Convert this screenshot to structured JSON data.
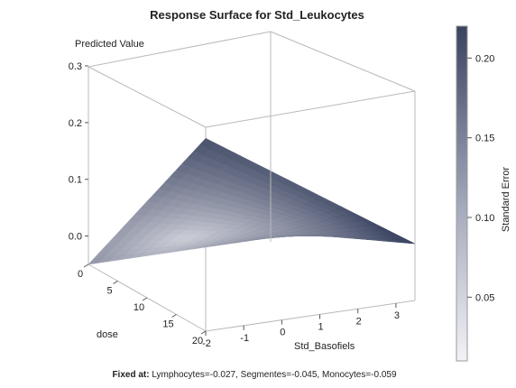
{
  "chart_data": {
    "type": "surface",
    "title": "Response Surface for Std_Leukocytes",
    "zlabel": "Predicted Value",
    "xlabel": "dose",
    "ylabel": "Std_Basofiels",
    "colorbar_label": "Standard Error",
    "x_ticks": [
      "0",
      "5",
      "10",
      "15",
      "20"
    ],
    "y_ticks": [
      "-2",
      "-1",
      "0",
      "1",
      "2",
      "3"
    ],
    "z_ticks": [
      "0.0",
      "0.1",
      "0.2",
      "0.3"
    ],
    "colorbar_ticks": [
      "0.05",
      "0.10",
      "0.15",
      "0.20"
    ],
    "xlim": [
      0,
      20
    ],
    "ylim": [
      -2,
      3.5
    ],
    "zlim": [
      -0.05,
      0.3
    ],
    "colorbar_range": [
      0.01,
      0.22
    ],
    "colors": {
      "low": "#e6e6ec",
      "high": "#3d4663"
    },
    "corner_values": [
      {
        "dose": 0,
        "Std_Basofiels": -2,
        "predicted": -0.05
      },
      {
        "dose": 20,
        "Std_Basofiels": -2,
        "predicted": 0.29
      },
      {
        "dose": 0,
        "Std_Basofiels": 3.5,
        "predicted": -0.05
      },
      {
        "dose": 20,
        "Std_Basofiels": 3.5,
        "predicted": 0.05
      }
    ],
    "footnote_label": "Fixed at:",
    "footnote_text": " Lymphocytes=-0.027, Segmentes=-0.045, Monocytes=-0.059"
  }
}
